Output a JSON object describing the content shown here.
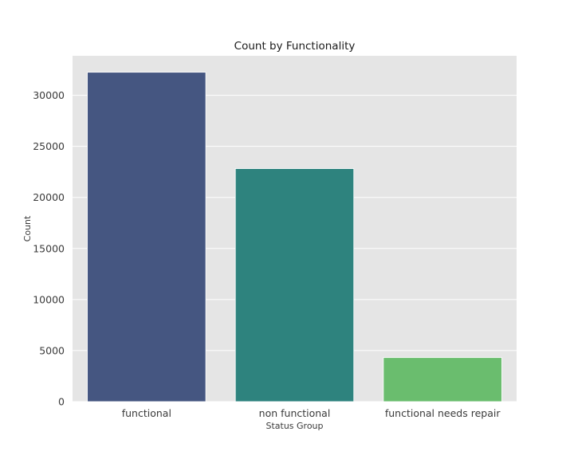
{
  "chart_data": {
    "type": "bar",
    "title": "Count by Functionality",
    "xlabel": "Status Group",
    "ylabel": "Count",
    "categories": [
      "functional",
      "non functional",
      "functional needs repair"
    ],
    "values": [
      32259,
      22824,
      4317
    ],
    "colors": [
      "#455681",
      "#2e837e",
      "#6abd6e"
    ],
    "yticks": [
      0,
      5000,
      10000,
      15000,
      20000,
      25000,
      30000
    ],
    "ylim": [
      0,
      33872
    ],
    "grid": true,
    "background": "#e5e5e5",
    "legend": "none"
  }
}
